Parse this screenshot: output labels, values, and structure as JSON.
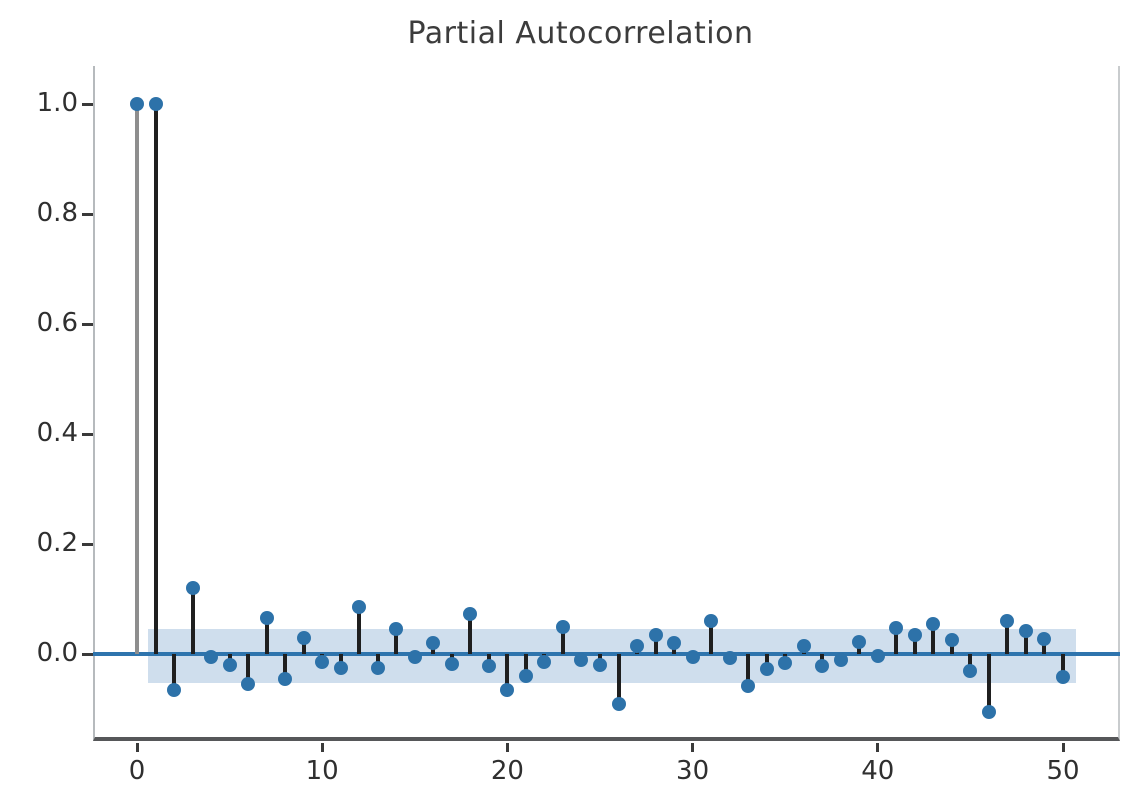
{
  "chart_data": {
    "type": "stem",
    "title": "Partial Autocorrelation",
    "xlabel": "",
    "ylabel": "",
    "x_ticks": [
      0,
      10,
      20,
      30,
      40,
      50
    ],
    "x_tick_labels": [
      "0",
      "10",
      "20",
      "30",
      "40",
      "50"
    ],
    "y_ticks": [
      0.0,
      0.2,
      0.4,
      0.6,
      0.8,
      1.0
    ],
    "y_tick_labels": [
      "0.0",
      "0.2",
      "0.4",
      "0.6",
      "0.8",
      "1.0"
    ],
    "xlim": [
      -2.4,
      53.1
    ],
    "ylim": [
      -0.158,
      1.069
    ],
    "grid": false,
    "legend": false,
    "lags": [
      0,
      1,
      2,
      3,
      4,
      5,
      6,
      7,
      8,
      9,
      10,
      11,
      12,
      13,
      14,
      15,
      16,
      17,
      18,
      19,
      20,
      21,
      22,
      23,
      24,
      25,
      26,
      27,
      28,
      29,
      30,
      31,
      32,
      33,
      34,
      35,
      36,
      37,
      38,
      39,
      40,
      41,
      42,
      43,
      44,
      45,
      46,
      47,
      48,
      49,
      50
    ],
    "values": [
      1.0,
      1.0,
      -0.065,
      0.12,
      -0.005,
      -0.02,
      -0.055,
      0.065,
      -0.045,
      0.03,
      -0.015,
      -0.025,
      0.085,
      -0.025,
      0.045,
      -0.005,
      0.02,
      -0.018,
      0.073,
      -0.022,
      -0.065,
      -0.04,
      -0.015,
      0.05,
      -0.01,
      -0.02,
      -0.09,
      0.015,
      0.035,
      0.02,
      -0.005,
      0.06,
      -0.008,
      -0.058,
      -0.028,
      -0.016,
      0.015,
      -0.022,
      -0.01,
      0.022,
      -0.003,
      0.047,
      0.035,
      0.055,
      0.025,
      -0.03,
      -0.105,
      0.06,
      0.042,
      0.028,
      -0.042
    ],
    "confidence_interval": {
      "upper": 0.046,
      "lower": -0.053,
      "x_start": 0.6,
      "x_end": 50.7
    },
    "colors": {
      "marker": "#2d72a9",
      "stem": "#1f1f1f",
      "stem_lag0": "#8e8e8e",
      "zero_line": "#2e74ad",
      "band": "#cfdeed",
      "spine_left": "#b6babd",
      "spine_bottom": "#565759",
      "tick": "#3a3a3a",
      "text": "#2f2f2f",
      "title_text": "#3c3c3c"
    }
  }
}
